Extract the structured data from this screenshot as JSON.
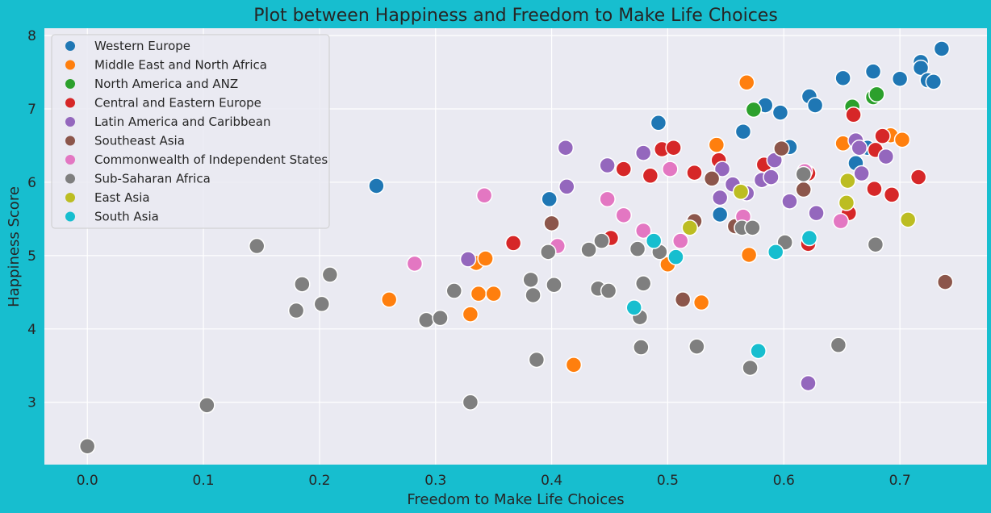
{
  "chart_data": {
    "type": "scatter",
    "title": "Plot between Happiness and Freedom to Make Life Choices",
    "xlabel": "Freedom to Make Life Choices",
    "ylabel": "Happiness Score",
    "xlim": [
      -0.037,
      0.775
    ],
    "ylim": [
      2.15,
      8.1
    ],
    "xticks": [
      "0.0",
      "0.1",
      "0.2",
      "0.3",
      "0.4",
      "0.5",
      "0.6",
      "0.7"
    ],
    "xtick_values": [
      0.0,
      0.1,
      0.2,
      0.3,
      0.4,
      0.5,
      0.6,
      0.7
    ],
    "yticks": [
      "3",
      "4",
      "5",
      "6",
      "7",
      "8"
    ],
    "ytick_values": [
      3,
      4,
      5,
      6,
      7,
      8
    ],
    "grid": true,
    "legend_position": "top-left",
    "colors": {
      "page_background": "#17becf",
      "plot_background": "#eaeaf2",
      "grid": "#ffffff"
    },
    "series": [
      {
        "name": "Western Europe",
        "color": "#1f77b4",
        "points": [
          [
            0.249,
            5.95
          ],
          [
            0.398,
            5.77
          ],
          [
            0.492,
            6.81
          ],
          [
            0.545,
            5.56
          ],
          [
            0.565,
            6.69
          ],
          [
            0.584,
            7.05
          ],
          [
            0.597,
            6.95
          ],
          [
            0.605,
            6.48
          ],
          [
            0.622,
            7.17
          ],
          [
            0.627,
            7.05
          ],
          [
            0.651,
            7.42
          ],
          [
            0.662,
            6.26
          ],
          [
            0.672,
            6.47
          ],
          [
            0.677,
            7.51
          ],
          [
            0.7,
            7.41
          ],
          [
            0.718,
            7.64
          ],
          [
            0.718,
            7.56
          ],
          [
            0.724,
            7.39
          ],
          [
            0.729,
            7.37
          ],
          [
            0.736,
            7.82
          ]
        ]
      },
      {
        "name": "Middle East and North Africa",
        "color": "#ff7f0e",
        "points": [
          [
            0.26,
            4.4
          ],
          [
            0.33,
            4.2
          ],
          [
            0.335,
            4.9
          ],
          [
            0.337,
            4.48
          ],
          [
            0.343,
            4.96
          ],
          [
            0.35,
            4.48
          ],
          [
            0.419,
            3.51
          ],
          [
            0.5,
            4.88
          ],
          [
            0.529,
            4.36
          ],
          [
            0.542,
            6.51
          ],
          [
            0.568,
            7.36
          ],
          [
            0.57,
            5.01
          ],
          [
            0.651,
            6.53
          ],
          [
            0.692,
            6.64
          ],
          [
            0.702,
            6.58
          ]
        ]
      },
      {
        "name": "North America and ANZ",
        "color": "#2ca02c",
        "points": [
          [
            0.574,
            6.99
          ],
          [
            0.659,
            7.03
          ],
          [
            0.677,
            7.16
          ],
          [
            0.68,
            7.2
          ]
        ]
      },
      {
        "name": "Central and Eastern Europe",
        "color": "#d62728",
        "points": [
          [
            0.367,
            5.17
          ],
          [
            0.451,
            5.24
          ],
          [
            0.462,
            6.18
          ],
          [
            0.485,
            6.09
          ],
          [
            0.495,
            6.45
          ],
          [
            0.505,
            6.47
          ],
          [
            0.523,
            6.13
          ],
          [
            0.544,
            6.3
          ],
          [
            0.583,
            6.24
          ],
          [
            0.588,
            6.06
          ],
          [
            0.621,
            6.12
          ],
          [
            0.621,
            5.16
          ],
          [
            0.656,
            5.58
          ],
          [
            0.66,
            6.92
          ],
          [
            0.678,
            5.91
          ],
          [
            0.679,
            6.44
          ],
          [
            0.685,
            6.63
          ],
          [
            0.693,
            5.83
          ],
          [
            0.716,
            6.07
          ]
        ]
      },
      {
        "name": "Latin America and Caribbean",
        "color": "#9467bd",
        "points": [
          [
            0.328,
            4.95
          ],
          [
            0.412,
            6.47
          ],
          [
            0.413,
            5.94
          ],
          [
            0.448,
            6.23
          ],
          [
            0.479,
            6.4
          ],
          [
            0.545,
            5.79
          ],
          [
            0.547,
            6.18
          ],
          [
            0.556,
            5.97
          ],
          [
            0.568,
            5.85
          ],
          [
            0.581,
            6.03
          ],
          [
            0.589,
            6.07
          ],
          [
            0.592,
            6.3
          ],
          [
            0.605,
            5.74
          ],
          [
            0.621,
            3.26
          ],
          [
            0.628,
            5.58
          ],
          [
            0.662,
            6.57
          ],
          [
            0.665,
            6.47
          ],
          [
            0.667,
            6.12
          ],
          [
            0.688,
            6.35
          ]
        ]
      },
      {
        "name": "Southeast Asia",
        "color": "#8c564b",
        "points": [
          [
            0.4,
            5.44
          ],
          [
            0.513,
            4.4
          ],
          [
            0.523,
            5.47
          ],
          [
            0.538,
            6.05
          ],
          [
            0.558,
            5.4
          ],
          [
            0.598,
            6.46
          ],
          [
            0.617,
            5.9
          ],
          [
            0.739,
            4.64
          ]
        ]
      },
      {
        "name": "Commonwealth of Independent States",
        "color": "#e377c2",
        "points": [
          [
            0.282,
            4.89
          ],
          [
            0.342,
            5.82
          ],
          [
            0.405,
            5.13
          ],
          [
            0.448,
            5.77
          ],
          [
            0.462,
            5.55
          ],
          [
            0.479,
            5.34
          ],
          [
            0.502,
            6.18
          ],
          [
            0.511,
            5.2
          ],
          [
            0.565,
            5.53
          ],
          [
            0.618,
            6.15
          ],
          [
            0.649,
            5.47
          ]
        ]
      },
      {
        "name": "Sub-Saharan Africa",
        "color": "#7f7f7f",
        "points": [
          [
            0.0,
            2.4
          ],
          [
            0.103,
            2.96
          ],
          [
            0.146,
            5.13
          ],
          [
            0.18,
            4.25
          ],
          [
            0.185,
            4.61
          ],
          [
            0.202,
            4.34
          ],
          [
            0.209,
            4.74
          ],
          [
            0.292,
            4.12
          ],
          [
            0.304,
            4.15
          ],
          [
            0.316,
            4.52
          ],
          [
            0.33,
            3.0
          ],
          [
            0.382,
            4.67
          ],
          [
            0.384,
            4.46
          ],
          [
            0.387,
            3.58
          ],
          [
            0.397,
            5.05
          ],
          [
            0.402,
            4.6
          ],
          [
            0.432,
            5.08
          ],
          [
            0.44,
            4.55
          ],
          [
            0.443,
            5.2
          ],
          [
            0.449,
            4.52
          ],
          [
            0.474,
            5.09
          ],
          [
            0.476,
            4.16
          ],
          [
            0.477,
            3.75
          ],
          [
            0.479,
            4.62
          ],
          [
            0.493,
            5.05
          ],
          [
            0.525,
            3.76
          ],
          [
            0.564,
            5.38
          ],
          [
            0.571,
            3.47
          ],
          [
            0.573,
            5.38
          ],
          [
            0.601,
            5.18
          ],
          [
            0.617,
            6.11
          ],
          [
            0.647,
            3.78
          ],
          [
            0.679,
            5.15
          ]
        ]
      },
      {
        "name": "East Asia",
        "color": "#bcbd22",
        "points": [
          [
            0.519,
            5.38
          ],
          [
            0.563,
            5.87
          ],
          [
            0.654,
            5.72
          ],
          [
            0.655,
            6.02
          ],
          [
            0.707,
            5.49
          ]
        ]
      },
      {
        "name": "South Asia",
        "color": "#17becf",
        "points": [
          [
            0.471,
            4.29
          ],
          [
            0.488,
            5.2
          ],
          [
            0.507,
            4.98
          ],
          [
            0.578,
            3.7
          ],
          [
            0.593,
            5.05
          ],
          [
            0.622,
            5.24
          ]
        ]
      }
    ]
  }
}
